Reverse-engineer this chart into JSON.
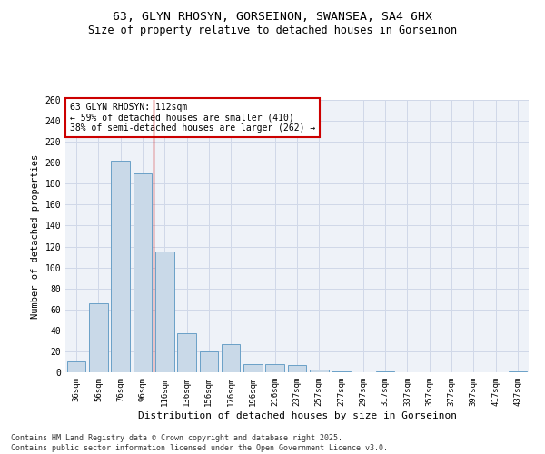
{
  "title_line1": "63, GLYN RHOSYN, GORSEINON, SWANSEA, SA4 6HX",
  "title_line2": "Size of property relative to detached houses in Gorseinon",
  "xlabel": "Distribution of detached houses by size in Gorseinon",
  "ylabel": "Number of detached properties",
  "footer_line1": "Contains HM Land Registry data © Crown copyright and database right 2025.",
  "footer_line2": "Contains public sector information licensed under the Open Government Licence v3.0.",
  "bar_color": "#c9d9e8",
  "bar_edge_color": "#6aa0c7",
  "grid_color": "#d0d8e8",
  "bg_color": "#eef2f8",
  "annotation_box_color": "#cc0000",
  "vline_color": "#cc0000",
  "annotation_text_line1": "63 GLYN RHOSYN: 112sqm",
  "annotation_text_line2": "← 59% of detached houses are smaller (410)",
  "annotation_text_line3": "38% of semi-detached houses are larger (262) →",
  "categories": [
    "36sqm",
    "56sqm",
    "76sqm",
    "96sqm",
    "116sqm",
    "136sqm",
    "156sqm",
    "176sqm",
    "196sqm",
    "216sqm",
    "237sqm",
    "257sqm",
    "277sqm",
    "297sqm",
    "317sqm",
    "337sqm",
    "357sqm",
    "377sqm",
    "397sqm",
    "417sqm",
    "437sqm"
  ],
  "values": [
    10,
    66,
    202,
    190,
    115,
    37,
    20,
    27,
    8,
    8,
    7,
    3,
    1,
    0,
    1,
    0,
    0,
    0,
    0,
    0,
    1
  ],
  "ylim": [
    0,
    260
  ],
  "yticks": [
    0,
    20,
    40,
    60,
    80,
    100,
    120,
    140,
    160,
    180,
    200,
    220,
    240,
    260
  ],
  "vline_x": 3.5,
  "figsize": [
    6.0,
    5.0
  ],
  "dpi": 100
}
